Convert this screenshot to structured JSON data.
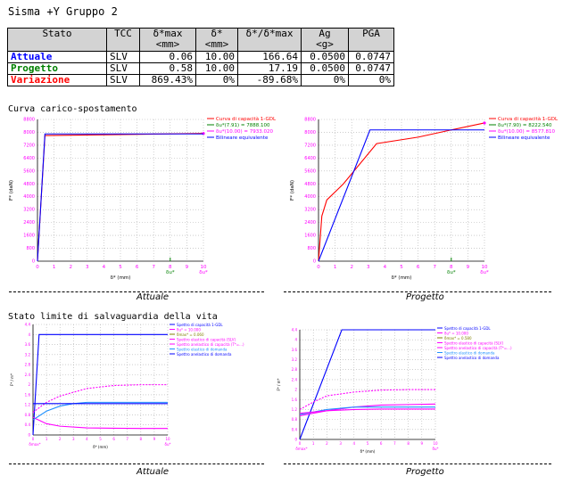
{
  "title": "Sisma +Y Gruppo 2",
  "table": {
    "headers": {
      "stato": "Stato",
      "tcc": "TCC",
      "dmax": "δ*max",
      "dmax_unit": "<mm>",
      "d": "δ*",
      "d_unit": "<mm>",
      "ratio": "δ*/δ*max",
      "ag": "Ag",
      "ag_unit": "<g>",
      "pga": "PGA"
    },
    "rows": [
      {
        "stato": "Attuale",
        "tcc": "SLV",
        "dmax": "0.06",
        "d": "10.00",
        "ratio": "166.64",
        "ag": "0.0500",
        "pga": "0.0747",
        "color": "#0000ff"
      },
      {
        "stato": "Progetto",
        "tcc": "SLV",
        "dmax": "0.58",
        "d": "10.00",
        "ratio": "17.19",
        "ag": "0.0500",
        "pga": "0.0747",
        "color": "#008000"
      },
      {
        "stato": "Variazione",
        "tcc": "SLV",
        "dmax": "869.43%",
        "d": "0%",
        "ratio": "-89.68%",
        "ag": "0%",
        "pga": "0%",
        "color": "#ff0000"
      }
    ]
  },
  "section1": "Curva carico-spostamento",
  "section2": "Stato limite di salvaguardia della vita",
  "captions": {
    "attuale": "Attuale",
    "progetto": "Progetto"
  },
  "chart_data": [
    {
      "type": "line",
      "panel": "Attuale - curva carico-spostamento",
      "xlabel": "δ* (mm)",
      "ylabel": "F* (daN)",
      "xlim": [
        0,
        10
      ],
      "ylim": [
        0,
        8800
      ],
      "xticks": [
        "0",
        "1",
        "2",
        "3",
        "4",
        "5",
        "6",
        "7",
        "8",
        "9",
        "10"
      ],
      "yticks": [
        "0",
        "800",
        "1600",
        "2400",
        "3200",
        "4000",
        "4800",
        "5600",
        "6400",
        "7200",
        "8000",
        "8800"
      ],
      "marker_label": "δu*",
      "legend": [
        "Curva di capacità 1-GDL",
        "δu*(7.91) = 7888.100",
        "δu*(10.00) = 7933.020",
        "Bilineare equivalente"
      ],
      "series": [
        {
          "name": "Curva di capacità 1-GDL",
          "color": "#ff0000",
          "x": [
            0,
            0.45,
            10
          ],
          "y": [
            0,
            7800,
            7930
          ]
        },
        {
          "name": "Bilineare equivalente",
          "color": "#0000ff",
          "x": [
            0,
            0.45,
            10
          ],
          "y": [
            0,
            7900,
            7900
          ]
        }
      ]
    },
    {
      "type": "line",
      "panel": "Progetto - curva carico-spostamento",
      "xlabel": "δ* (mm)",
      "ylabel": "F* (daN)",
      "xlim": [
        0,
        10
      ],
      "ylim": [
        0,
        8800
      ],
      "xticks": [
        "0",
        "1",
        "2",
        "3",
        "4",
        "5",
        "6",
        "7",
        "8",
        "9",
        "10"
      ],
      "yticks": [
        "0",
        "800",
        "1600",
        "2400",
        "3200",
        "4000",
        "4800",
        "5600",
        "6400",
        "7200",
        "8000",
        "8800"
      ],
      "marker_label": "δu*",
      "legend": [
        "Curva di capacità 1-GDL",
        "δu*(7.90) = 8222.540",
        "δu*(10.00) = 8577.810",
        "Bilineare equivalente"
      ],
      "series": [
        {
          "name": "Curva di capacità 1-GDL",
          "color": "#ff0000",
          "x": [
            0,
            0.2,
            0.5,
            1.5,
            3.5,
            6,
            8,
            10
          ],
          "y": [
            0,
            2800,
            3800,
            4800,
            7300,
            7700,
            8150,
            8580
          ]
        },
        {
          "name": "Bilineare equivalente",
          "color": "#0000ff",
          "x": [
            0,
            3.1,
            10
          ],
          "y": [
            0,
            8150,
            8150
          ]
        }
      ]
    },
    {
      "type": "line",
      "panel": "Attuale - stato limite di salvaguardia della vita",
      "xlabel": "δ* (mm)",
      "ylabel": "F* / m*",
      "xlim": [
        0,
        10
      ],
      "ylim": [
        0,
        4.4
      ],
      "xticks": [
        "0",
        "1",
        "2",
        "3",
        "4",
        "5",
        "6",
        "7",
        "8",
        "9",
        "10"
      ],
      "yticks": [
        "0",
        "0.4",
        "0.8",
        "1.2",
        "1.6",
        "2",
        "2.4",
        "2.8",
        "3.2",
        "3.6",
        "4",
        "4.4"
      ],
      "legend": [
        "Spettro di capacità 1-GDL",
        "δu* = 10.000",
        "δmax* = 0.060",
        "Spettro elastico di capacità (SLV)",
        "Spettro anelastico di capacità (T*=...)",
        "Spettro elastico di domanda",
        "Spettro anelastico di domanda"
      ],
      "markers": [
        "δmax*",
        "δu*"
      ],
      "series": [
        {
          "name": "Spettro di capacità 1-GDL",
          "color": "#0000ff",
          "x": [
            0,
            0.45,
            10
          ],
          "y": [
            0,
            4.0,
            4.0
          ]
        },
        {
          "name": "Spettro elastico di capacità",
          "color": "#ff00ff",
          "x": [
            0,
            1,
            2,
            4,
            6,
            8,
            10
          ],
          "y": [
            0.9,
            1.3,
            1.55,
            1.85,
            1.97,
            2.0,
            2.0
          ]
        },
        {
          "name": "Spettro anelastico di capacità",
          "color": "#ff00ff",
          "x": [
            0,
            1,
            2,
            4,
            6,
            8,
            10
          ],
          "y": [
            0.7,
            0.45,
            0.35,
            0.28,
            0.27,
            0.26,
            0.26
          ]
        },
        {
          "name": "Spettro elastico di domanda",
          "color": "#1e90ff",
          "x": [
            0,
            1,
            2,
            3,
            4,
            10
          ],
          "y": [
            0.6,
            0.95,
            1.15,
            1.25,
            1.3,
            1.3
          ]
        },
        {
          "name": "Spettro anelastico di domanda",
          "color": "#0000ff",
          "x": [
            0,
            10
          ],
          "y": [
            1.25,
            1.25
          ]
        }
      ]
    },
    {
      "type": "line",
      "panel": "Progetto - stato limite di salvaguardia della vita",
      "xlabel": "δ* (mm)",
      "ylabel": "F* / m*",
      "xlim": [
        0,
        10
      ],
      "ylim": [
        0,
        4.4
      ],
      "xticks": [
        "0",
        "1",
        "2",
        "3",
        "4",
        "5",
        "6",
        "7",
        "8",
        "9",
        "10"
      ],
      "yticks": [
        "0",
        "0.4",
        "0.8",
        "1.2",
        "1.6",
        "2",
        "2.4",
        "2.8",
        "3.2",
        "3.6",
        "4",
        "4.4"
      ],
      "legend": [
        "Spettro di capacità 1-GDL",
        "δu* = 10.000",
        "δmax* = 0.580",
        "Spettro elastico di capacità (SLV)",
        "Spettro anelastico di capacità (T*=...)",
        "Spettro elastico di domanda",
        "Spettro anelastico di domanda"
      ],
      "markers": [
        "δmax*",
        "δu*"
      ],
      "series": [
        {
          "name": "Spettro di capacità 1-GDL",
          "color": "#0000ff",
          "x": [
            0,
            3.1,
            10
          ],
          "y": [
            0,
            4.4,
            4.4
          ]
        },
        {
          "name": "Spettro elastico di capacità",
          "color": "#ff00ff",
          "x": [
            0,
            1,
            2,
            4,
            6,
            8,
            10
          ],
          "y": [
            1.2,
            1.5,
            1.75,
            1.9,
            1.98,
            2.0,
            2.0
          ]
        },
        {
          "name": "Spettro anelastico di capacità",
          "color": "#ff00ff",
          "x": [
            0,
            2,
            4,
            6,
            8,
            10
          ],
          "y": [
            0.95,
            1.15,
            1.3,
            1.38,
            1.4,
            1.42
          ]
        },
        {
          "name": "Spettro elastico di domanda",
          "color": "#1e90ff",
          "x": [
            0,
            2,
            4,
            10
          ],
          "y": [
            1.0,
            1.2,
            1.3,
            1.3
          ]
        },
        {
          "name": "Spettro anelastico di domanda",
          "color": "#ff00ff",
          "x": [
            0,
            2,
            4,
            6,
            10
          ],
          "y": [
            1.05,
            1.15,
            1.2,
            1.22,
            1.22
          ]
        }
      ]
    }
  ]
}
